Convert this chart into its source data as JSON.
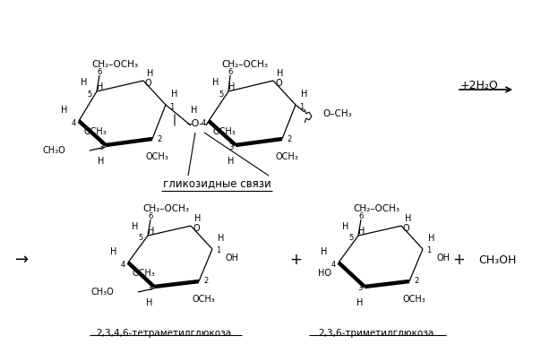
{
  "background_color": "#ffffff",
  "top_label_glycosidic": "гликозидные связи",
  "bottom_label1": "2,3,4,6-тетраметилглюкоза",
  "bottom_label2": "2,3,6-триметилглюкоза",
  "ch3oh": "CH₃OH",
  "plus": "+",
  "arrow_right": "+2H₂O",
  "arrow_left": "→"
}
